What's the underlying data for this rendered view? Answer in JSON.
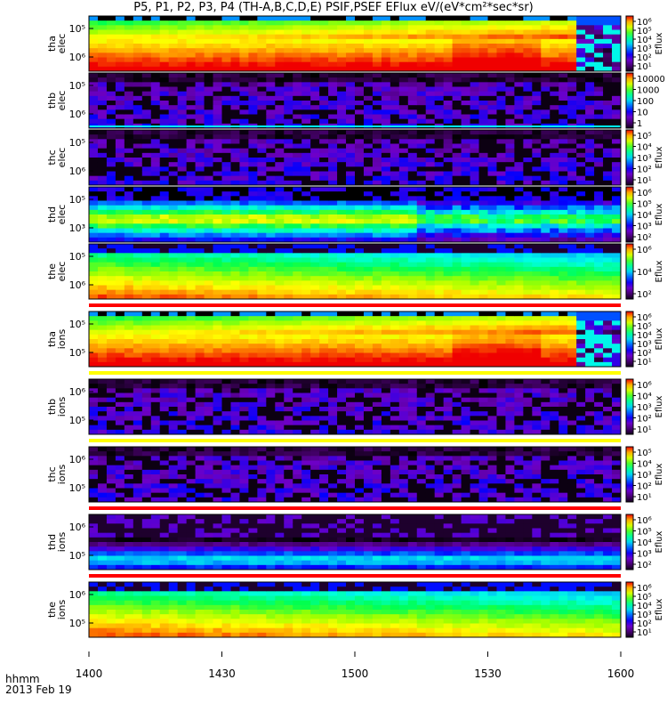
{
  "title": "P5, P1, P2, P3, P4 (TH-A,B,C,D,E) PSIF,PSEF EFlux eV/(eV*cm²*sec*sr)",
  "xaxis": {
    "label_line1": "hhmm",
    "label_line2": "2013 Feb 19"
  },
  "colors": {
    "background": "#ffffff",
    "frame": "#000000",
    "red_bar": "#ff0000",
    "yellow_bar": "#ffff00",
    "cyan_line": "#00ffff"
  },
  "chart_data": {
    "type": "heatmap",
    "x_ticks": [
      "1400",
      "1430",
      "1500",
      "1530",
      "1600"
    ],
    "x_range": [
      "1400",
      "1600"
    ],
    "panels": [
      {
        "label": [
          "tha",
          "elec"
        ],
        "y_ticks": [
          "10⁵",
          "10⁶"
        ],
        "colorbar_title": "Eflux",
        "colorbar_ticks": [
          "10⁶",
          "10⁵",
          "10⁴",
          "10³",
          "10²",
          "10¹"
        ],
        "regime": "dense_red",
        "baseline_bar": "none"
      },
      {
        "label": [
          "thb",
          "elec"
        ],
        "y_ticks": [
          "10⁵",
          "10⁶"
        ],
        "colorbar_title": "",
        "colorbar_ticks": [
          "10000",
          "1000",
          "100",
          "10",
          "1"
        ],
        "regime": "sparse_purple",
        "baseline_bar": "cyan"
      },
      {
        "label": [
          "thc",
          "elec"
        ],
        "y_ticks": [
          "10⁵",
          "10⁶"
        ],
        "colorbar_title": "Eflux",
        "colorbar_ticks": [
          "10⁵",
          "10⁴",
          "10³",
          "10²",
          "10¹"
        ],
        "regime": "sparse_purple",
        "baseline_bar": "none"
      },
      {
        "label": [
          "thd",
          "elec"
        ],
        "y_ticks": [
          "10⁵",
          "10³"
        ],
        "colorbar_title": "Eflux",
        "colorbar_ticks": [
          "10⁶",
          "10⁵",
          "10⁴",
          "10³",
          "10²"
        ],
        "regime": "band_green",
        "baseline_bar": "none"
      },
      {
        "label": [
          "the",
          "elec"
        ],
        "y_ticks": [
          "10⁵",
          "10⁶"
        ],
        "colorbar_title": "Eflux",
        "colorbar_ticks": [
          "10⁶",
          "10⁴",
          "10²"
        ],
        "regime": "dense_yellow",
        "baseline_bar": "red"
      },
      {
        "label": [
          "tha",
          "ions"
        ],
        "y_ticks": [
          "10⁵",
          "10⁵"
        ],
        "colorbar_title": "Eflux",
        "colorbar_ticks": [
          "10⁶",
          "10⁵",
          "10⁴",
          "10³",
          "10²",
          "10¹"
        ],
        "regime": "dense_red",
        "baseline_bar": "yellow"
      },
      {
        "label": [
          "thb",
          "ions"
        ],
        "y_ticks": [
          "10⁶",
          "10⁵"
        ],
        "colorbar_title": "Eflux",
        "colorbar_ticks": [
          "10⁶",
          "10⁴",
          "10³",
          "10²",
          "10¹"
        ],
        "regime": "sparse_purple",
        "baseline_bar": "yellow"
      },
      {
        "label": [
          "thc",
          "ions"
        ],
        "y_ticks": [
          "10⁶",
          "10⁵"
        ],
        "colorbar_title": "Eflux",
        "colorbar_ticks": [
          "10⁵",
          "10⁴",
          "10³",
          "10²",
          "10¹"
        ],
        "regime": "sparse_purple",
        "baseline_bar": "red"
      },
      {
        "label": [
          "thd",
          "ions"
        ],
        "y_ticks": [
          "10⁶",
          "10⁵"
        ],
        "colorbar_title": "Eflux",
        "colorbar_ticks": [
          "10⁶",
          "10⁵",
          "10⁴",
          "10³",
          "10²"
        ],
        "regime": "band_purple",
        "baseline_bar": "red"
      },
      {
        "label": [
          "the",
          "ions"
        ],
        "y_ticks": [
          "10⁶",
          "10⁵"
        ],
        "colorbar_title": "Eflux",
        "colorbar_ticks": [
          "10⁶",
          "10⁵",
          "10⁴",
          "10³",
          "10²",
          "10¹"
        ],
        "regime": "dense_yellow",
        "baseline_bar": "none"
      }
    ]
  }
}
